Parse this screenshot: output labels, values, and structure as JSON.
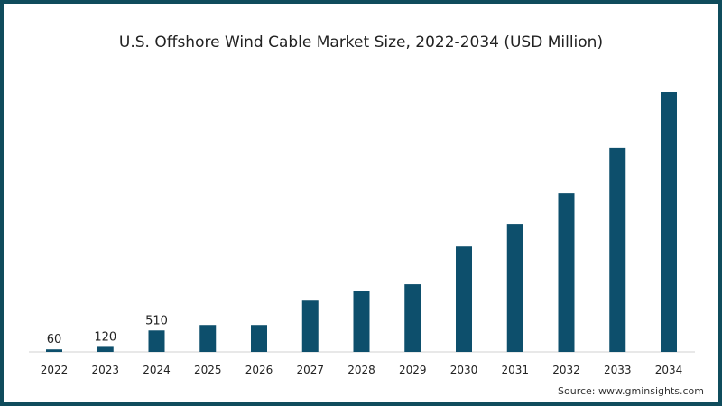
{
  "chart_data": {
    "type": "bar",
    "title": "U.S. Offshore Wind Cable Market Size, 2022-2034 (USD Million)",
    "xlabel": "",
    "ylabel": "",
    "categories": [
      "2022",
      "2023",
      "2024",
      "2025",
      "2026",
      "2027",
      "2028",
      "2029",
      "2030",
      "2031",
      "2032",
      "2033",
      "2034"
    ],
    "values": [
      60,
      120,
      510,
      640,
      640,
      1220,
      1460,
      1610,
      2510,
      3050,
      3780,
      4860,
      6190
    ],
    "data_labels": {
      "2022": "60",
      "2023": "120",
      "2024": "510"
    },
    "ylim": [
      0,
      6300
    ],
    "grid": false,
    "bar_color": "#0d4f6c",
    "source": "Source: www.gminsights.com"
  }
}
